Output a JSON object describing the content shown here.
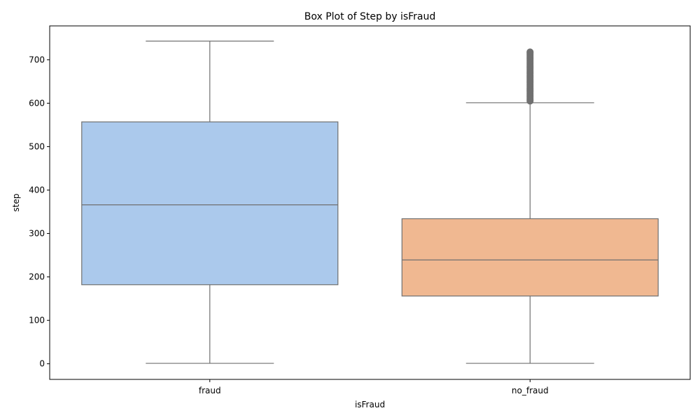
{
  "chart_data": {
    "type": "box",
    "title": "Box Plot of Step by isFraud",
    "xlabel": "isFraud",
    "ylabel": "step",
    "ylim": [
      -36,
      778
    ],
    "yticks": [
      0,
      100,
      200,
      300,
      400,
      500,
      600,
      700
    ],
    "grid": false,
    "categories": [
      "fraud",
      "no_fraud"
    ],
    "boxes": [
      {
        "category": "fraud",
        "whisker_low": 1,
        "q1": 182,
        "median": 366,
        "q3": 557,
        "whisker_high": 743,
        "outliers": [],
        "color": "#abc9ec"
      },
      {
        "category": "no_fraud",
        "whisker_low": 1,
        "q1": 156,
        "median": 239,
        "q3": 334,
        "whisker_high": 601,
        "outliers": [
          605,
          608,
          611,
          614,
          617,
          620,
          623,
          626,
          629,
          632,
          635,
          638,
          641,
          644,
          647,
          650,
          653,
          656,
          659,
          662,
          665,
          668,
          671,
          674,
          677,
          680,
          683,
          686,
          689,
          692,
          695,
          698,
          701,
          704,
          707,
          710,
          713,
          716,
          718
        ],
        "color": "#f0b891"
      }
    ],
    "line_color": "#707070"
  }
}
